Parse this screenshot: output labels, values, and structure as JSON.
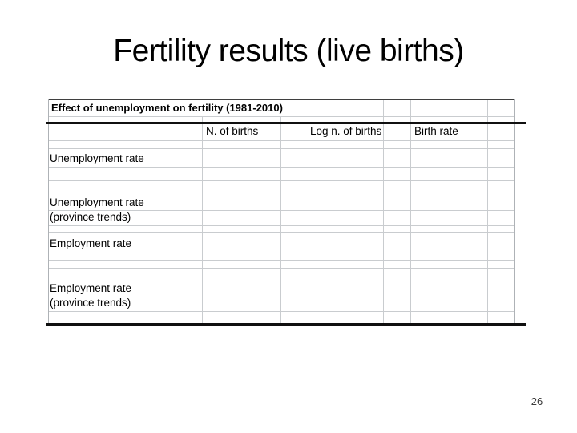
{
  "slide": {
    "title": "Fertility results (live births)",
    "page_number": "26"
  },
  "table": {
    "title": "Effect of unemployment on fertility (1981-2010)",
    "column_headers": {
      "col_births": "N. of births",
      "col_log_births": "Log n. of births",
      "col_birth_rate": "Birth rate"
    },
    "row_labels": {
      "unemployment_rate": "Unemployment rate",
      "unemployment_rate_trends_line1": "Unemployment rate",
      "unemployment_rate_trends_line2": "(province trends)",
      "employment_rate": "Employment rate",
      "employment_rate_trends_line1": "Employment rate",
      "employment_rate_trends_line2": "(province trends)"
    },
    "cells": "empty"
  },
  "colors": {
    "background": "#ffffff",
    "text": "#000000",
    "grid_line": "#c9cccf",
    "outer_side_border": "#aeb2b6",
    "outer_top_border": "#3f3f3f",
    "heavy_rule": "#101010",
    "page_number_text": "#3b3b3b"
  }
}
